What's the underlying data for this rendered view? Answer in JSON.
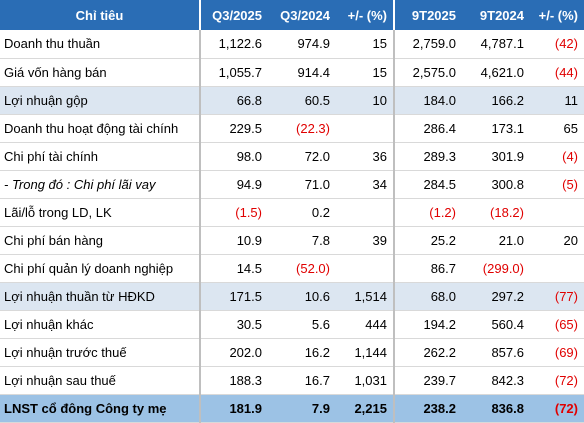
{
  "table": {
    "headers": [
      "Chỉ tiêu",
      "Q3/2025",
      "Q3/2024",
      "+/- (%)",
      "9T2025",
      "9T2024",
      "+/- (%)"
    ],
    "rows": [
      [
        "Doanh thu thuần",
        "1,122.6",
        "974.9",
        "15",
        "2,759.0",
        "4,787.1",
        "(42)"
      ],
      [
        "Giá vốn hàng bán",
        "1,055.7",
        "914.4",
        "15",
        "2,575.0",
        "4,621.0",
        "(44)"
      ],
      [
        "Lợi nhuận gộp",
        "66.8",
        "60.5",
        "10",
        "184.0",
        "166.2",
        "11"
      ],
      [
        "Doanh thu hoạt động tài chính",
        "229.5",
        "(22.3)",
        null,
        "286.4",
        "173.1",
        "65"
      ],
      [
        "Chi phí tài chính",
        "98.0",
        "72.0",
        "36",
        "289.3",
        "301.9",
        "(4)"
      ],
      [
        "- Trong đó : Chi phí lãi vay",
        "94.9",
        "71.0",
        "34",
        "284.5",
        "300.8",
        "(5)"
      ],
      [
        "Lãi/lỗ trong LD, LK",
        "(1.5)",
        "0.2",
        null,
        "(1.2)",
        "(18.2)",
        null
      ],
      [
        "Chi phí bán hàng",
        "10.9",
        "7.8",
        "39",
        "25.2",
        "21.0",
        "20"
      ],
      [
        "Chi phí quản lý doanh nghiệp",
        "14.5",
        "(52.0)",
        null,
        "86.7",
        "(299.0)",
        null
      ],
      [
        "Lợi nhuận thuần từ HĐKD",
        "171.5",
        "10.6",
        "1,514",
        "68.0",
        "297.2",
        "(77)"
      ],
      [
        "Lợi nhuận khác",
        "30.5",
        "5.6",
        "444",
        "194.2",
        "560.4",
        "(65)"
      ],
      [
        "Lợi nhuận trước thuế",
        "202.0",
        "16.2",
        "1,144",
        "262.2",
        "857.6",
        "(69)"
      ],
      [
        "Lợi nhuận sau thuế",
        "188.3",
        "16.7",
        "1,031",
        "239.7",
        "842.3",
        "(72)"
      ],
      [
        "LNST cổ đông Công ty mẹ",
        "181.9",
        "7.9",
        "2,215",
        "238.2",
        "836.8",
        "(72)"
      ]
    ]
  }
}
